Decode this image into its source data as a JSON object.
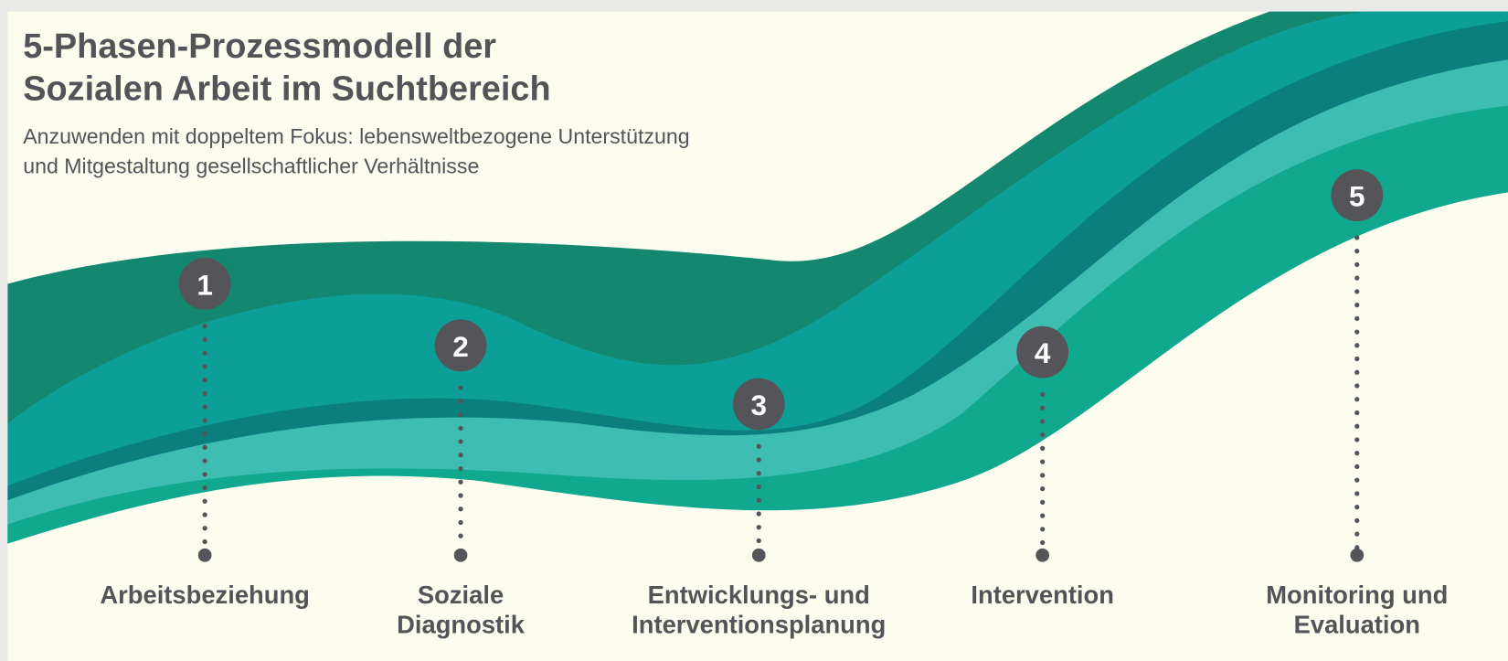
{
  "header": {
    "title": [
      "5-Phasen-Prozessmodell der",
      "Sozialen Arbeit im Suchtbereich"
    ],
    "subtitle": [
      "Anzuwenden mit doppeltem Fokus: lebensweltbezogene Unterstützung",
      "und Mitgestaltung gesellschaftlicher Verhältnisse"
    ]
  },
  "phases": [
    {
      "number": "1",
      "label": [
        "Arbeitsbeziehung"
      ]
    },
    {
      "number": "2",
      "label": [
        "Soziale",
        "Diagnostik"
      ]
    },
    {
      "number": "3",
      "label": [
        "Entwicklungs- und",
        "Interventionsplanung"
      ]
    },
    {
      "number": "4",
      "label": [
        "Intervention"
      ]
    },
    {
      "number": "5",
      "label": [
        "Monitoring und",
        "Evaluation"
      ]
    }
  ]
}
